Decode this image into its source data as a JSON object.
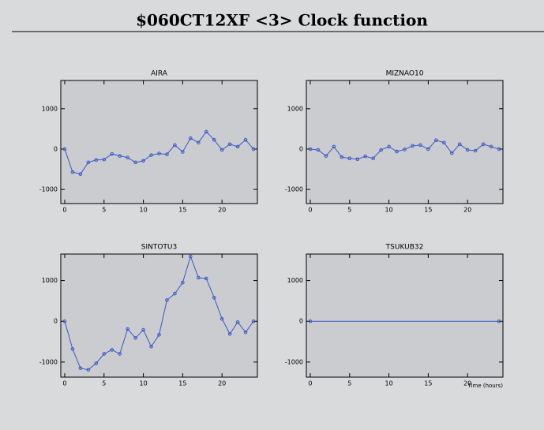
{
  "title": "$060CT12XF <3>  Clock function",
  "chart_data": [
    {
      "type": "line",
      "title": "AIRA",
      "color": "#3a58c8",
      "x": [
        0,
        1,
        2,
        3,
        4,
        5,
        6,
        7,
        8,
        9,
        10,
        11,
        12,
        13,
        14,
        15,
        16,
        17,
        18,
        19,
        20,
        21,
        22,
        23,
        24
      ],
      "values": [
        0,
        -570,
        -620,
        -330,
        -270,
        -260,
        -120,
        -170,
        -210,
        -330,
        -290,
        -150,
        -110,
        -130,
        100,
        -70,
        270,
        160,
        430,
        230,
        -20,
        120,
        60,
        230,
        0
      ],
      "xlim": [
        -0.5,
        24.5
      ],
      "xticks": [
        0,
        5,
        10,
        15,
        20
      ],
      "ylim": [
        -1350,
        1700
      ],
      "yticks": [
        -1000,
        0,
        1000
      ]
    },
    {
      "type": "line",
      "title": "MIZNAO10",
      "color": "#3a58c8",
      "x": [
        0,
        1,
        2,
        3,
        4,
        5,
        6,
        7,
        8,
        9,
        10,
        11,
        12,
        13,
        14,
        15,
        16,
        17,
        18,
        19,
        20,
        21,
        22,
        23,
        24
      ],
      "values": [
        0,
        -20,
        -170,
        60,
        -200,
        -230,
        -250,
        -180,
        -230,
        -20,
        60,
        -60,
        -10,
        80,
        100,
        0,
        220,
        160,
        -100,
        120,
        -20,
        -40,
        120,
        60,
        0
      ],
      "xlim": [
        -0.5,
        24.5
      ],
      "xticks": [
        0,
        5,
        10,
        15,
        20
      ],
      "ylim": [
        -1350,
        1700
      ],
      "yticks": [
        -1000,
        0,
        1000
      ]
    },
    {
      "type": "line",
      "title": "SINTOTU3",
      "color": "#3a58c8",
      "x": [
        0,
        1,
        2,
        3,
        4,
        5,
        6,
        7,
        8,
        9,
        10,
        11,
        12,
        13,
        14,
        15,
        16,
        17,
        18,
        19,
        20,
        21,
        22,
        23,
        24
      ],
      "values": [
        0,
        -680,
        -1150,
        -1190,
        -1030,
        -800,
        -700,
        -800,
        -190,
        -410,
        -210,
        -620,
        -330,
        520,
        680,
        950,
        1590,
        1070,
        1050,
        580,
        60,
        -310,
        -20,
        -270,
        0
      ],
      "xlim": [
        -0.5,
        24.5
      ],
      "xticks": [
        0,
        5,
        10,
        15,
        20
      ],
      "ylim": [
        -1370,
        1650
      ],
      "yticks": [
        -1000,
        0,
        1000
      ]
    },
    {
      "type": "line",
      "title": "TSUKUB32",
      "color": "#3a58c8",
      "xlabel": "Time (hours)",
      "x": [
        0,
        24
      ],
      "values": [
        0,
        0
      ],
      "xlim": [
        -0.5,
        24.5
      ],
      "xticks": [
        0,
        5,
        10,
        15,
        20
      ],
      "ylim": [
        -1370,
        1650
      ],
      "yticks": [
        -1000,
        0,
        1000
      ]
    }
  ]
}
